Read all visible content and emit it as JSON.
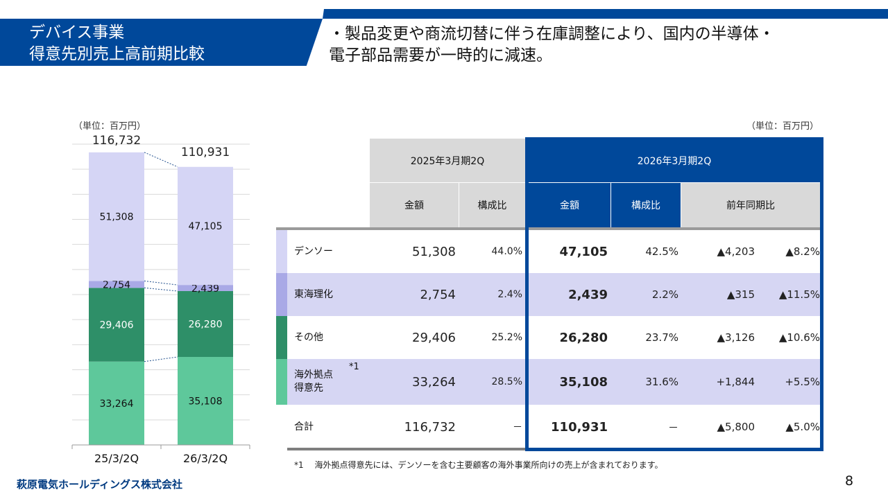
{
  "header": {
    "title_line1": "デバイス事業",
    "title_line2": "得意先別売上高前期比較",
    "lead_line1": "・製品変更や商流切替に伴う在庫調整により、国内の半導体・",
    "lead_line2": "電子部品需要が一時的に減速。"
  },
  "chart_data": {
    "type": "bar",
    "stacked": true,
    "unit": "（単位：百万円）",
    "categories": [
      "25/3/2Q",
      "26/3/2Q"
    ],
    "ylim": [
      0,
      120000
    ],
    "grid": true,
    "totals": [
      "116,732",
      "110,931"
    ],
    "series": [
      {
        "key": "overseas",
        "values": [
          33264,
          35108
        ],
        "labels": [
          "33,264",
          "35,108"
        ],
        "color": "#5ec89b",
        "text": "#111"
      },
      {
        "key": "other",
        "values": [
          29406,
          26280
        ],
        "labels": [
          "29,406",
          "26,280"
        ],
        "color": "#2e8f68",
        "text": "#fff"
      },
      {
        "key": "tokai",
        "values": [
          2754,
          2439
        ],
        "labels": [
          "2,754",
          "2,439"
        ],
        "color": "#a9a9e6",
        "text": "#111"
      },
      {
        "key": "denso",
        "values": [
          51308,
          47105
        ],
        "labels": [
          "51,308",
          "47,105"
        ],
        "color": "#d5d5f5",
        "text": "#111"
      }
    ]
  },
  "table": {
    "unit": "（単位：百万円）",
    "period_prev": "2025年3月期2Q",
    "period_curr": "2026年3月期2Q",
    "col_amount": "金額",
    "col_ratio": "構成比",
    "col_yoy": "前年同期比",
    "rows": [
      {
        "label": "デンソー",
        "prev": "51,308",
        "prev_ratio": "44.0%",
        "curr": "47,105",
        "curr_ratio": "42.5%",
        "diff": "▲4,203",
        "diff_pct": "▲8.2%",
        "color": "#d5d5f5",
        "shade": false
      },
      {
        "label": "東海理化",
        "prev": "2,754",
        "prev_ratio": "2.4%",
        "curr": "2,439",
        "curr_ratio": "2.2%",
        "diff": "▲315",
        "diff_pct": "▲11.5%",
        "color": "#a9a9e6",
        "shade": true
      },
      {
        "label": "その他",
        "prev": "29,406",
        "prev_ratio": "25.2%",
        "curr": "26,280",
        "curr_ratio": "23.7%",
        "diff": "▲3,126",
        "diff_pct": "▲10.6%",
        "color": "#2e8f68",
        "shade": false
      },
      {
        "label": "海外拠点\n得意先",
        "note": "*1",
        "prev": "33,264",
        "prev_ratio": "28.5%",
        "curr": "35,108",
        "curr_ratio": "31.6%",
        "diff": "+1,844",
        "diff_pct": "+5.5%",
        "color": "#5ec89b",
        "shade": true
      },
      {
        "label": "合計",
        "prev": "116,732",
        "prev_ratio": "－",
        "curr": "110,931",
        "curr_ratio": "－",
        "diff": "▲5,800",
        "diff_pct": "▲5.0%",
        "color": "#ffffff",
        "shade": false
      }
    ]
  },
  "footnote": "*1　 海外拠点得意先には、デンソーを含む主要顧客の海外事業所向けの売上が含まれております。",
  "footer": {
    "company": "萩原電気ホールディングス株式会社",
    "page": "8"
  }
}
